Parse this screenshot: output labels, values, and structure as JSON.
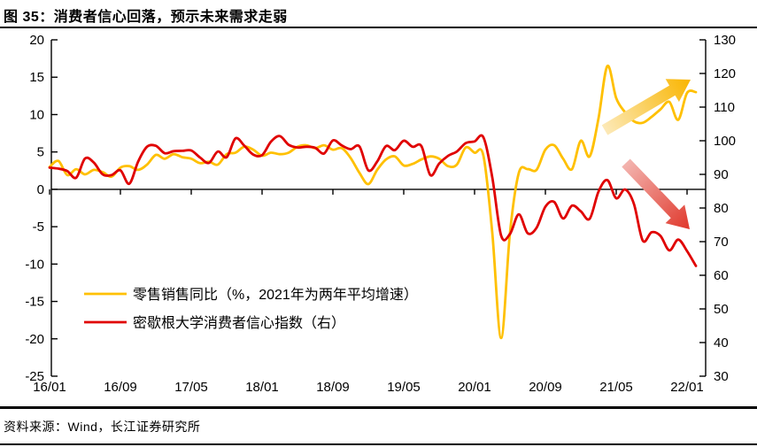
{
  "figure": {
    "title": "图 35：消费者信心回落，预示未来需求走弱",
    "source": "资料来源：Wind，长江证券研究所"
  },
  "chart_data": {
    "type": "line",
    "title": "消费者信心回落，预示未来需求走弱",
    "x_start": "2016/01",
    "x_end": "2022/02",
    "x_freq": "monthly",
    "x_tick_labels": [
      "16/01",
      "16/09",
      "17/05",
      "18/01",
      "18/09",
      "19/05",
      "20/01",
      "20/09",
      "21/05",
      "22/01"
    ],
    "left_axis": {
      "min": -25,
      "max": 20,
      "step": 5,
      "ticks": [
        20,
        15,
        10,
        5,
        0,
        -5,
        -10,
        -15,
        -20,
        -25
      ]
    },
    "right_axis": {
      "min": 30,
      "max": 130,
      "step": 10,
      "ticks": [
        130,
        120,
        110,
        100,
        90,
        80,
        70,
        60,
        50,
        40,
        30
      ]
    },
    "grid": false,
    "legend_position": "inside-lower-left",
    "series": [
      {
        "name": "零售销售同比（%，2021年为两年平均增速）",
        "axis": "left",
        "color": "#FFC000",
        "values": [
          3.0,
          3.8,
          1.9,
          2.7,
          2.0,
          2.6,
          2.3,
          1.7,
          2.9,
          3.1,
          2.6,
          3.3,
          4.6,
          4.1,
          4.7,
          4.3,
          4.1,
          3.5,
          3.7,
          3.3,
          4.7,
          4.9,
          5.7,
          5.3,
          4.5,
          4.9,
          4.7,
          4.9,
          5.7,
          5.9,
          5.5,
          5.9,
          5.3,
          5.5,
          4.2,
          2.2,
          0.7,
          2.6,
          4.0,
          4.4,
          3.2,
          3.4,
          4.0,
          4.4,
          4.1,
          3.1,
          3.3,
          5.6,
          4.9,
          4.5,
          -5.8,
          -19.9,
          -5.8,
          2.2,
          2.7,
          2.6,
          5.3,
          5.9,
          4.1,
          2.7,
          6.5,
          4.4,
          9.5,
          16.5,
          12.2,
          10.3,
          9.1,
          8.9,
          9.7,
          10.7,
          11.7,
          9.3,
          12.9,
          13.0
        ]
      },
      {
        "name": "密歇根大学消费者信心指数（右）",
        "axis": "right",
        "color": "#E00000",
        "values": [
          92.0,
          91.7,
          91.0,
          89.0,
          94.7,
          93.5,
          90.0,
          89.8,
          91.2,
          87.2,
          93.8,
          98.2,
          98.5,
          96.3,
          96.9,
          97.0,
          97.1,
          95.0,
          93.4,
          96.8,
          95.1,
          100.7,
          98.5,
          95.9,
          95.7,
          99.7,
          101.4,
          98.8,
          98.0,
          98.2,
          97.9,
          96.2,
          100.1,
          98.6,
          97.5,
          98.3,
          91.2,
          93.8,
          98.4,
          97.2,
          100.0,
          98.2,
          98.4,
          89.8,
          93.2,
          95.5,
          96.8,
          99.3,
          99.8,
          101.0,
          89.1,
          71.8,
          72.3,
          78.1,
          72.5,
          74.1,
          80.4,
          81.8,
          76.9,
          80.7,
          79.0,
          76.8,
          84.9,
          88.3,
          82.9,
          85.5,
          81.2,
          70.3,
          72.8,
          71.7,
          67.4,
          70.6,
          67.2,
          62.8
        ]
      }
    ],
    "annotations": [
      {
        "name": "retail-uptrend-arrow",
        "direction": "up-right",
        "color_from": "#FCE9B8",
        "color_to": "#F9B500"
      },
      {
        "name": "confidence-downtrend-arrow",
        "direction": "down-right",
        "color_from": "#F3B4AF",
        "color_to": "#E0382C"
      }
    ]
  }
}
